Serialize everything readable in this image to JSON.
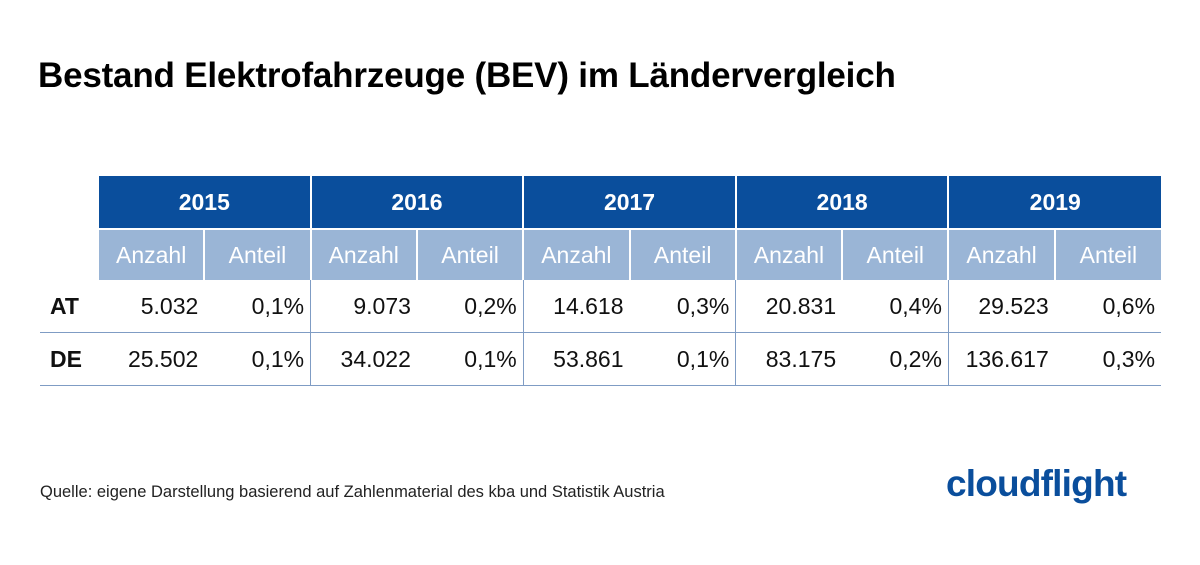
{
  "title": "Bestand Elektrofahrzeuge (BEV) im Ländervergleich",
  "source": "Quelle: eigene Darstellung basierend auf Zahlenmaterial des kba und Statistik Austria",
  "logo": "cloudflight",
  "colors": {
    "header_dark": "#0a4e9c",
    "header_light": "#9ab5d6",
    "rule": "#7f9cc4",
    "logo": "#0a4e9c"
  },
  "chart_data": {
    "type": "table",
    "title": "Bestand Elektrofahrzeuge (BEV) im Ländervergleich",
    "years": [
      "2015",
      "2016",
      "2017",
      "2018",
      "2019"
    ],
    "subheaders": [
      "Anzahl",
      "Anteil"
    ],
    "rows": [
      {
        "label": "AT",
        "cells": [
          {
            "anzahl": "5.032",
            "anteil": "0,1%"
          },
          {
            "anzahl": "9.073",
            "anteil": "0,2%"
          },
          {
            "anzahl": "14.618",
            "anteil": "0,3%"
          },
          {
            "anzahl": "20.831",
            "anteil": "0,4%"
          },
          {
            "anzahl": "29.523",
            "anteil": "0,6%"
          }
        ]
      },
      {
        "label": "DE",
        "cells": [
          {
            "anzahl": "25.502",
            "anteil": "0,1%"
          },
          {
            "anzahl": "34.022",
            "anteil": "0,1%"
          },
          {
            "anzahl": "53.861",
            "anteil": "0,1%"
          },
          {
            "anzahl": "83.175",
            "anteil": "0,2%"
          },
          {
            "anzahl": "136.617",
            "anteil": "0,3%"
          }
        ]
      }
    ]
  }
}
